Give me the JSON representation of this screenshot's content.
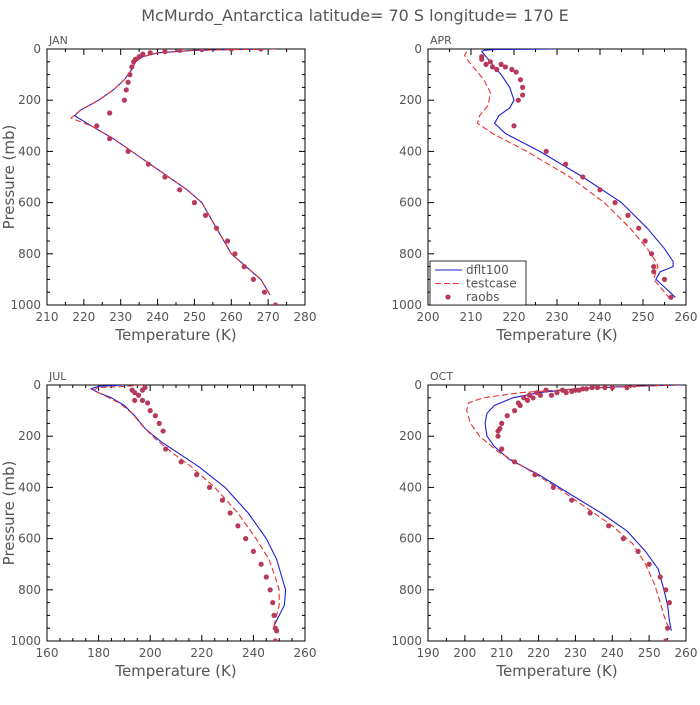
{
  "figure": {
    "title": "McMurdo_Antarctica   latitude=  70 S  longitude=  170 E",
    "line_color_model": "#1f1fd6",
    "line_color_test": "#e8312f",
    "dot_color_obs": "#b83a5a"
  },
  "chart_data": [
    {
      "type": "line",
      "panel_label": "JAN",
      "xlabel": "Temperature (K)",
      "ylabel": "Pressure (mb)",
      "xlim": [
        210,
        280
      ],
      "ylim": [
        1000,
        0
      ],
      "xticks": [
        210,
        220,
        230,
        240,
        250,
        260,
        270,
        280
      ],
      "yticks": [
        0,
        200,
        400,
        600,
        800,
        1000
      ],
      "y_reversed": true,
      "legend": null,
      "series": [
        {
          "name": "dflt100",
          "style": "solid",
          "x": [
            271.5,
            262,
            250,
            240,
            236,
            234,
            233,
            231,
            228,
            224,
            219,
            217.5,
            222,
            228,
            233,
            238,
            243,
            248,
            252,
            256,
            260,
            264,
            268,
            270.5
          ],
          "y": [
            0,
            2,
            5,
            15,
            30,
            50,
            80,
            120,
            160,
            200,
            240,
            260,
            300,
            350,
            400,
            450,
            500,
            550,
            600,
            700,
            800,
            850,
            900,
            960
          ]
        },
        {
          "name": "testcase",
          "style": "dashed",
          "x": [
            272,
            262,
            250,
            240,
            236,
            234,
            233,
            231,
            228,
            224,
            219,
            216.5,
            222,
            228,
            233,
            238,
            243,
            248,
            252,
            256,
            260,
            264,
            268,
            270.5
          ],
          "y": [
            0,
            2,
            5,
            15,
            30,
            50,
            80,
            120,
            160,
            200,
            240,
            270,
            300,
            350,
            400,
            450,
            500,
            550,
            600,
            700,
            800,
            850,
            900,
            960
          ]
        },
        {
          "name": "raobs",
          "style": "dots",
          "x": [
            268,
            260,
            252,
            246,
            242,
            238,
            236,
            235,
            234,
            233.5,
            233,
            232.5,
            232,
            231.5,
            231,
            227,
            223.5,
            227,
            232,
            237.5,
            242,
            246,
            250,
            253,
            256,
            259,
            261,
            263.5,
            266,
            269,
            272
          ],
          "y": [
            0,
            0,
            2,
            5,
            10,
            15,
            20,
            30,
            40,
            50,
            70,
            100,
            130,
            160,
            200,
            250,
            300,
            350,
            400,
            450,
            500,
            550,
            600,
            650,
            700,
            750,
            800,
            850,
            900,
            950,
            1000
          ]
        }
      ]
    },
    {
      "type": "line",
      "panel_label": "APR",
      "xlabel": "Temperature (K)",
      "ylabel": "",
      "xlim": [
        200,
        260
      ],
      "ylim": [
        1000,
        0
      ],
      "xticks": [
        200,
        210,
        220,
        230,
        240,
        250,
        260
      ],
      "yticks": [
        0,
        200,
        400,
        600,
        800,
        1000
      ],
      "y_reversed": true,
      "legend": {
        "placement": "bottom-left",
        "entries": [
          "dflt100",
          "testcase",
          "raobs"
        ]
      },
      "series": [
        {
          "name": "dflt100",
          "style": "solid",
          "x": [
            230,
            216,
            213,
            212.5,
            213.5,
            215,
            217,
            219,
            220,
            219,
            216.5,
            215.5,
            218,
            226,
            236,
            245,
            251,
            255,
            257,
            257,
            254,
            253,
            255,
            257.5
          ],
          "y": [
            0,
            2,
            5,
            10,
            30,
            60,
            100,
            150,
            200,
            230,
            260,
            290,
            330,
            400,
            500,
            600,
            700,
            780,
            830,
            850,
            870,
            900,
            930,
            970
          ]
        },
        {
          "name": "testcase",
          "style": "dashed",
          "x": [
            209,
            208.5,
            209.5,
            211,
            213,
            214.5,
            214,
            212,
            211.5,
            215,
            223,
            233,
            241,
            247,
            251,
            253,
            253.5,
            253,
            252.5,
            254,
            256.5
          ],
          "y": [
            10,
            25,
            50,
            80,
            120,
            170,
            220,
            260,
            290,
            330,
            400,
            500,
            600,
            700,
            780,
            830,
            850,
            870,
            900,
            930,
            980
          ]
        },
        {
          "name": "raobs",
          "style": "dots",
          "x": [
            212.5,
            212.5,
            213.5,
            214.5,
            215,
            216,
            217,
            218,
            219.5,
            220.5,
            221.5,
            222,
            222,
            221,
            220,
            227.5,
            232,
            236,
            240,
            243.5,
            246.5,
            249,
            250.5,
            252,
            252.5,
            252.5,
            255,
            256.5
          ],
          "y": [
            30,
            40,
            60,
            50,
            70,
            80,
            60,
            70,
            80,
            90,
            120,
            150,
            180,
            200,
            300,
            400,
            450,
            500,
            550,
            600,
            650,
            700,
            750,
            800,
            850,
            870,
            900,
            970
          ]
        }
      ]
    },
    {
      "type": "line",
      "panel_label": "JUL",
      "xlabel": "Temperature (K)",
      "ylabel": "Pressure (mb)",
      "xlim": [
        160,
        260
      ],
      "ylim": [
        1000,
        0
      ],
      "xticks": [
        160,
        180,
        200,
        220,
        240,
        260
      ],
      "yticks": [
        0,
        200,
        400,
        600,
        800,
        1000
      ],
      "y_reversed": true,
      "legend": null,
      "series": [
        {
          "name": "dflt100",
          "style": "solid",
          "x": [
            190,
            180,
            177,
            180,
            185,
            190,
            194,
            198,
            204,
            210,
            219,
            229,
            238,
            245,
            249,
            251,
            252.5,
            252,
            250,
            248,
            249
          ],
          "y": [
            0,
            5,
            15,
            30,
            50,
            80,
            120,
            170,
            220,
            260,
            320,
            400,
            500,
            600,
            680,
            750,
            800,
            860,
            900,
            940,
            960
          ]
        },
        {
          "name": "testcase",
          "style": "dashed",
          "x": [
            197,
            191,
            180,
            178,
            182,
            188,
            193,
            197,
            202,
            208,
            216,
            225,
            234,
            241,
            246,
            248.5,
            250,
            250,
            249,
            248,
            248.5
          ],
          "y": [
            0,
            5,
            10,
            20,
            40,
            70,
            110,
            160,
            210,
            260,
            320,
            400,
            500,
            600,
            680,
            750,
            800,
            860,
            900,
            940,
            960
          ]
        },
        {
          "name": "raobs",
          "style": "dots",
          "x": [
            198,
            197,
            193,
            194,
            195.5,
            194,
            197,
            199,
            200,
            202,
            203.5,
            205,
            206,
            212,
            218,
            223,
            228,
            231,
            234,
            237,
            240,
            243,
            245,
            246.5,
            247.5,
            248,
            248.5,
            248.5,
            249
          ],
          "y": [
            10,
            20,
            20,
            30,
            40,
            60,
            60,
            70,
            100,
            120,
            150,
            180,
            250,
            300,
            350,
            400,
            450,
            500,
            550,
            600,
            650,
            700,
            750,
            800,
            850,
            900,
            950,
            1000,
            960
          ]
        }
      ]
    },
    {
      "type": "line",
      "panel_label": "OCT",
      "xlabel": "Temperature (K)",
      "ylabel": "",
      "xlim": [
        190,
        260
      ],
      "ylim": [
        1000,
        0
      ],
      "xticks": [
        190,
        200,
        210,
        220,
        230,
        240,
        250,
        260
      ],
      "yticks": [
        0,
        200,
        400,
        600,
        800,
        1000
      ],
      "y_reversed": true,
      "legend": null,
      "series": [
        {
          "name": "dflt100",
          "style": "solid",
          "x": [
            259,
            245,
            230,
            220,
            213,
            208,
            206,
            205.5,
            206,
            208,
            212,
            220,
            229,
            237,
            244,
            249,
            252.5,
            254,
            255,
            255.5,
            256
          ],
          "y": [
            0,
            5,
            15,
            30,
            50,
            80,
            110,
            150,
            200,
            240,
            290,
            350,
            430,
            500,
            570,
            650,
            720,
            800,
            860,
            920,
            960
          ]
        },
        {
          "name": "testcase",
          "style": "dashed",
          "x": [
            258,
            235,
            215,
            205,
            201,
            200.5,
            201.5,
            204,
            209,
            216,
            225,
            233,
            240,
            245.5,
            249,
            251.5,
            253,
            254,
            255,
            255.5
          ],
          "y": [
            0,
            10,
            30,
            50,
            70,
            100,
            150,
            200,
            260,
            320,
            400,
            480,
            550,
            620,
            700,
            780,
            850,
            900,
            940,
            960
          ]
        },
        {
          "name": "raobs",
          "style": "dots",
          "x": [
            246,
            244,
            240,
            238,
            236,
            234.5,
            233,
            232,
            231,
            230,
            229,
            227.5,
            226.5,
            225,
            223.5,
            222,
            220.5,
            219.5,
            218.5,
            217.5,
            217,
            216,
            215,
            214.5,
            213.5,
            211.5,
            210,
            209.5,
            209,
            209,
            210,
            213.5,
            219,
            224,
            229,
            234,
            239,
            243,
            247,
            250,
            253,
            254.5,
            255.5,
            255,
            254.5
          ],
          "y": [
            0,
            10,
            10,
            10,
            10,
            10,
            15,
            15,
            20,
            20,
            25,
            30,
            20,
            30,
            40,
            20,
            40,
            30,
            50,
            40,
            60,
            50,
            80,
            70,
            100,
            120,
            150,
            170,
            180,
            200,
            250,
            300,
            350,
            400,
            450,
            500,
            550,
            600,
            650,
            700,
            750,
            800,
            850,
            950,
            1000
          ]
        }
      ]
    }
  ]
}
